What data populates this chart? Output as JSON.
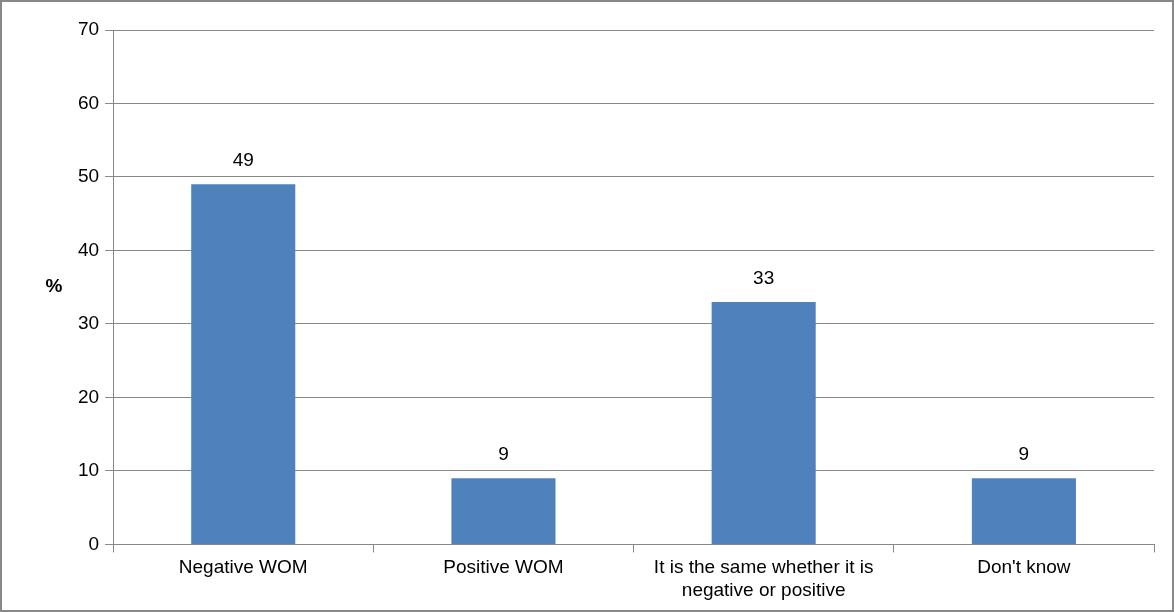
{
  "chart_data": {
    "type": "bar",
    "ylabel": "%",
    "categories": [
      "Negative WOM",
      "Positive WOM",
      "It is the same whether it is negative or positive",
      "Don't know"
    ],
    "values": [
      49,
      9,
      33,
      9
    ],
    "color": "#4f81bd",
    "ylim": [
      0,
      70
    ],
    "yticks": [
      0,
      10,
      20,
      30,
      40,
      50,
      60,
      70
    ],
    "grid": "y",
    "data_labels": true,
    "legend": false
  }
}
